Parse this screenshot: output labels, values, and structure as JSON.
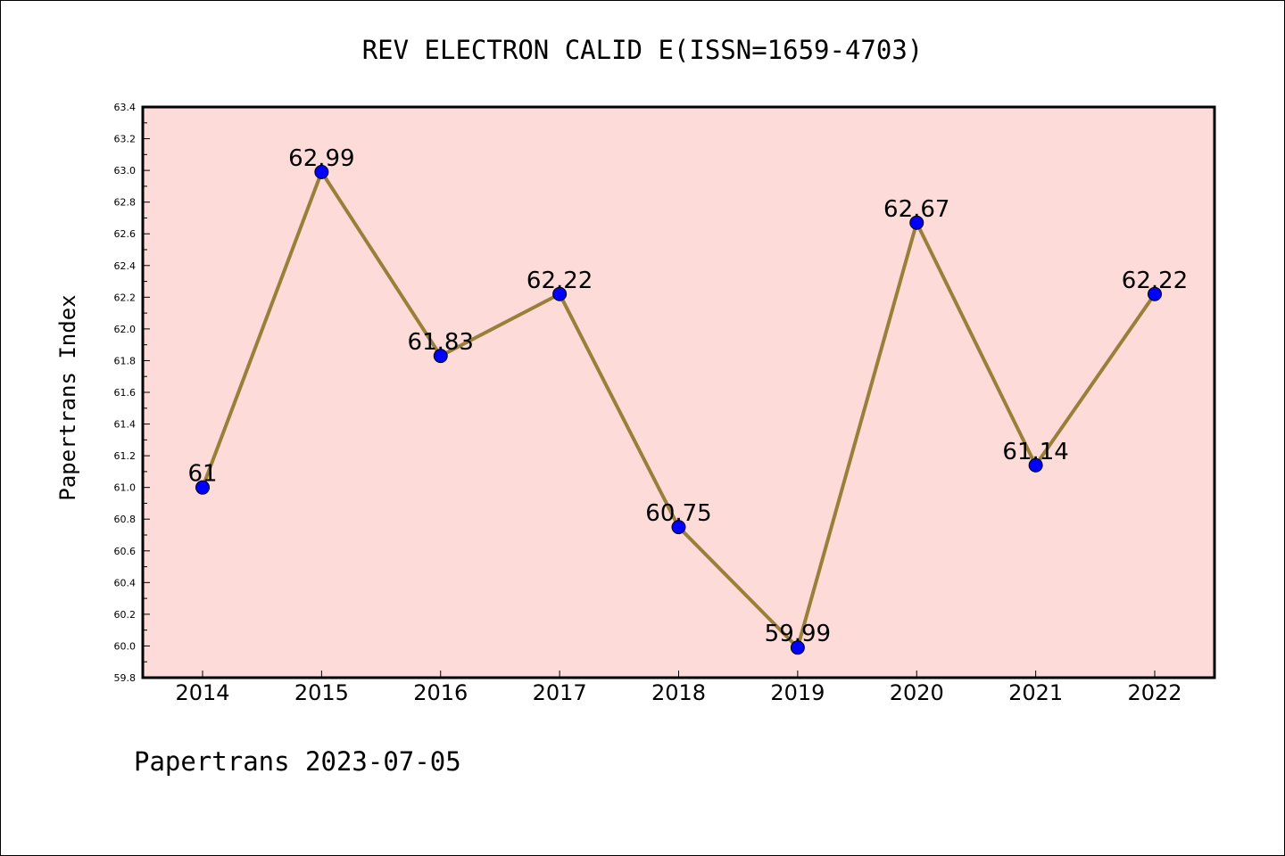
{
  "chart_data": {
    "type": "line",
    "title": "REV ELECTRON CALID E(ISSN=1659-4703)",
    "ylabel": "Papertrans Index",
    "xlabel": "",
    "categories": [
      "2014",
      "2015",
      "2016",
      "2017",
      "2018",
      "2019",
      "2020",
      "2021",
      "2022"
    ],
    "values": [
      61,
      62.99,
      61.83,
      62.22,
      60.75,
      59.99,
      62.67,
      61.14,
      62.22
    ],
    "data_labels": [
      "61",
      "62.99",
      "61.83",
      "62.22",
      "60.75",
      "59.99",
      "62.67",
      "61.14",
      "62.22"
    ],
    "ylim": [
      59.8,
      63.4
    ],
    "yticks": [
      "59.8",
      "60.0",
      "60.2",
      "60.4",
      "60.6",
      "60.8",
      "61.0",
      "61.2",
      "61.4",
      "61.6",
      "61.8",
      "62.0",
      "62.2",
      "62.4",
      "62.6",
      "62.8",
      "63.0",
      "63.2",
      "63.4"
    ],
    "grid": false,
    "legend": "none",
    "colors": {
      "plot_background": "#fddbd8",
      "line": "#9a7f3a",
      "marker": "#0000ff",
      "axes": "#000000"
    }
  },
  "footer": "Papertrans 2023-07-05"
}
